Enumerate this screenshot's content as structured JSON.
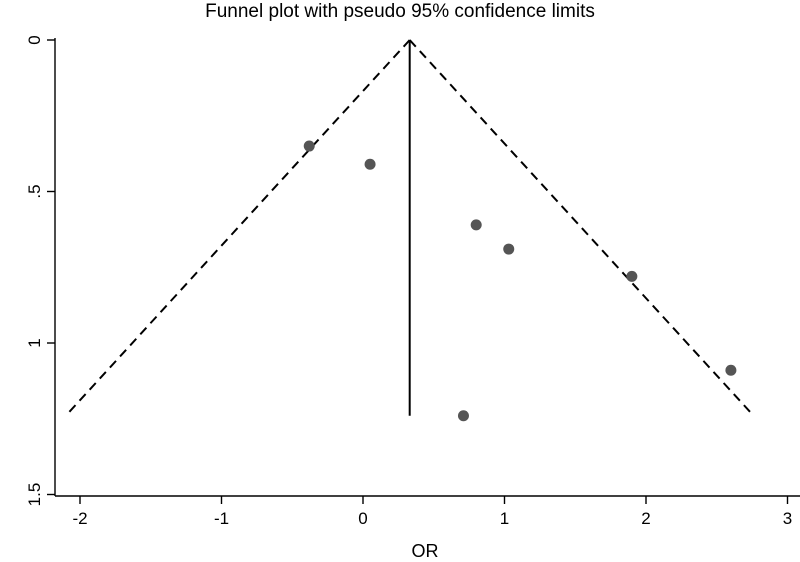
{
  "chart_data": {
    "type": "scatter",
    "title": "Funnel plot with pseudo 95% confidence limits",
    "xlabel": "OR",
    "ylabel": "",
    "xlim": [
      -2.2,
      3.05
    ],
    "ylim": [
      0,
      1.5
    ],
    "y_reversed": true,
    "x_ticks": [
      -2,
      -1,
      0,
      1,
      2,
      3
    ],
    "x_tick_labels": [
      "-2",
      "-1",
      "0",
      "1",
      "2",
      "3"
    ],
    "y_ticks": [
      0,
      0.5,
      1,
      1.5
    ],
    "y_tick_labels": [
      "0",
      ".5",
      "1",
      "1.5"
    ],
    "grid": false,
    "pooled_estimate": 0.33,
    "funnel_max_se": 1.24,
    "funnel_z": 1.96,
    "points": [
      {
        "x": -0.38,
        "y": 0.35
      },
      {
        "x": 0.05,
        "y": 0.41
      },
      {
        "x": 0.8,
        "y": 0.61
      },
      {
        "x": 1.03,
        "y": 0.69
      },
      {
        "x": 1.9,
        "y": 0.78
      },
      {
        "x": 2.6,
        "y": 1.09
      },
      {
        "x": 0.71,
        "y": 1.24
      }
    ],
    "colors": {
      "points": "#555555",
      "lines": "#000000",
      "background": "#ffffff"
    }
  }
}
